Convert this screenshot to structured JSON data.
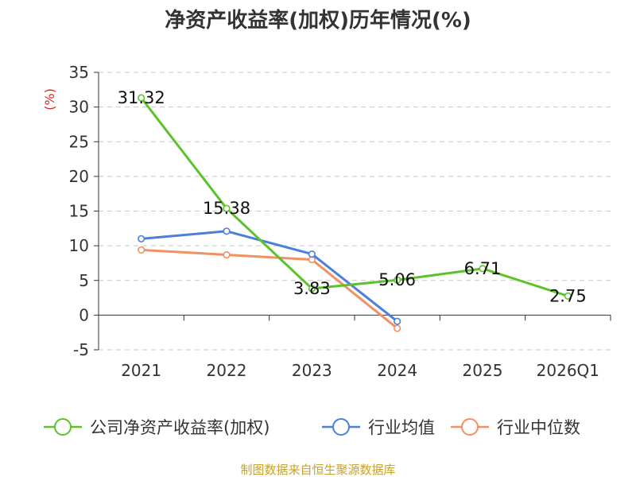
{
  "chart_data": {
    "type": "line",
    "title": "净资产收益率(加权)历年情况(%)",
    "ylabel": "(%)",
    "categories": [
      "2021",
      "2022",
      "2023",
      "2024",
      "2025",
      "2026Q1"
    ],
    "ylim": [
      -5,
      35
    ],
    "yticks": [
      -5,
      0,
      5,
      10,
      15,
      20,
      25,
      30,
      35
    ],
    "grid": true,
    "legend_position": "bottom",
    "series": [
      {
        "name": "公司净资产收益率(加权)",
        "color": "#5cc22a",
        "values": [
          31.32,
          15.38,
          3.83,
          5.06,
          6.71,
          2.75
        ],
        "labels": [
          "31.32",
          "15.38",
          "3.83",
          "5.06",
          "6.71",
          "2.75"
        ]
      },
      {
        "name": "行业均值",
        "color": "#4a7fdc",
        "values": [
          11.0,
          12.1,
          8.8,
          -0.9,
          null,
          null
        ]
      },
      {
        "name": "行业中位数",
        "color": "#f39062",
        "values": [
          9.4,
          8.7,
          8.0,
          -1.9,
          null,
          null
        ]
      }
    ],
    "ylabel_color": "#e02020",
    "source": "制图数据来自恒生聚源数据库",
    "source_color": "#c9a227"
  }
}
